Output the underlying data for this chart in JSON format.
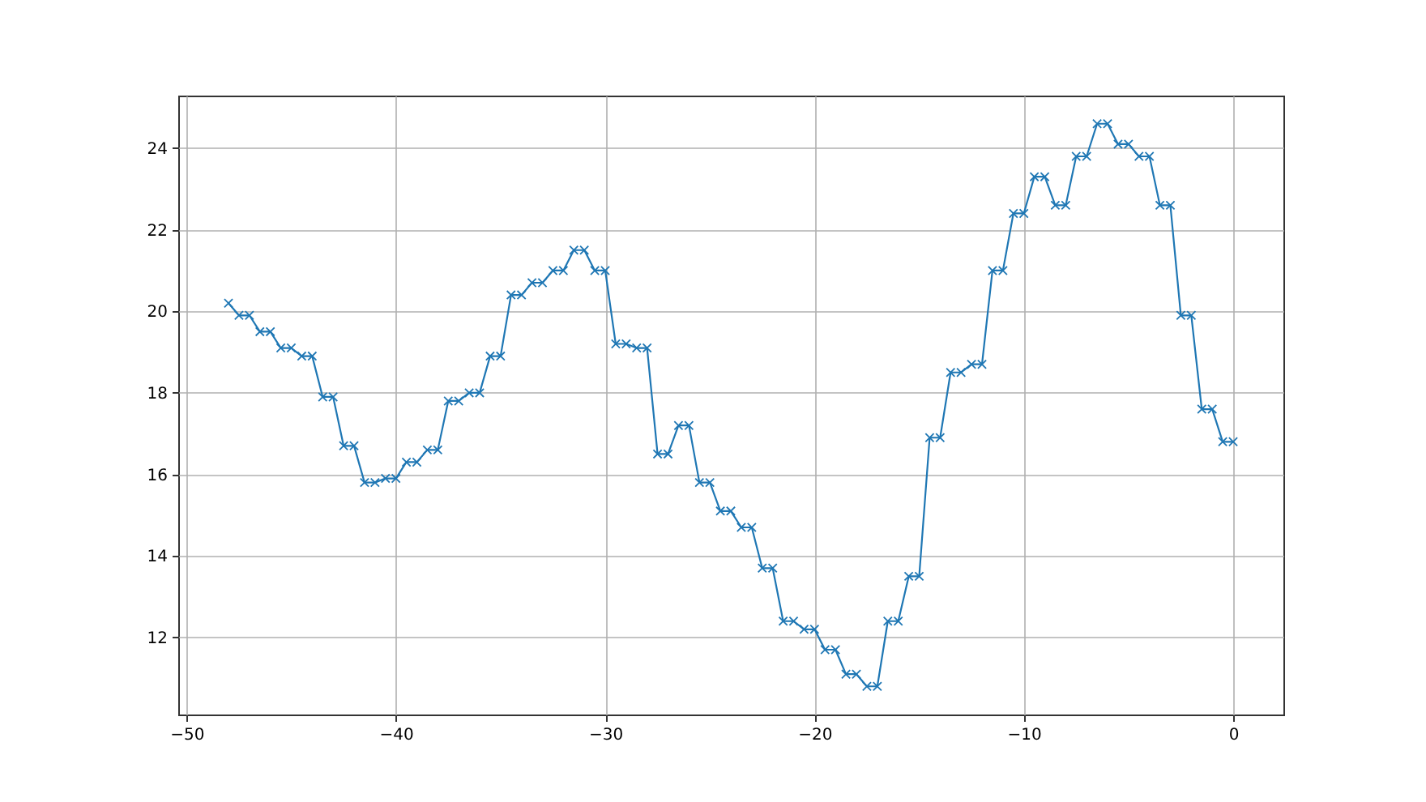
{
  "chart_data": {
    "type": "line",
    "x": [
      -48,
      -47.5,
      -47,
      -46.5,
      -46,
      -45.5,
      -45,
      -44.5,
      -44,
      -43.5,
      -43,
      -42.5,
      -42,
      -41.5,
      -41,
      -40.5,
      -40,
      -39.5,
      -39,
      -38.5,
      -38,
      -37.5,
      -37,
      -36.5,
      -36,
      -35.5,
      -35,
      -34.5,
      -34,
      -33.5,
      -33,
      -32.5,
      -32,
      -31.5,
      -31,
      -30.5,
      -30,
      -29.5,
      -29,
      -28.5,
      -28,
      -27.5,
      -27,
      -26.5,
      -26,
      -25.5,
      -25,
      -24.5,
      -24,
      -23.5,
      -23,
      -22.5,
      -22,
      -21.5,
      -21,
      -20.5,
      -20,
      -19.5,
      -19,
      -18.5,
      -18,
      -17.5,
      -17,
      -16.5,
      -16,
      -15.5,
      -15,
      -14.5,
      -14,
      -13.5,
      -13,
      -12.5,
      -12,
      -11.5,
      -11,
      -10.5,
      -10,
      -9.5,
      -9,
      -8.5,
      -8,
      -7.5,
      -7,
      -6.5,
      -6,
      -5.5,
      -5,
      -4.5,
      -4,
      -3.5,
      -3,
      -2.5,
      -2,
      -1.5,
      -1,
      -0.5,
      0
    ],
    "values": [
      20.2,
      19.9,
      19.9,
      19.5,
      19.5,
      19.1,
      19.1,
      18.9,
      18.9,
      17.9,
      17.9,
      16.7,
      16.7,
      15.8,
      15.8,
      15.9,
      15.9,
      16.3,
      16.3,
      16.6,
      16.6,
      17.8,
      17.8,
      18.0,
      18.0,
      18.9,
      18.9,
      20.4,
      20.4,
      20.7,
      20.7,
      21.0,
      21.0,
      21.5,
      21.5,
      21.0,
      21.0,
      19.2,
      19.2,
      19.1,
      19.1,
      16.5,
      16.5,
      17.2,
      17.2,
      15.8,
      15.8,
      15.1,
      15.1,
      14.7,
      14.7,
      13.7,
      13.7,
      12.4,
      12.4,
      12.2,
      12.2,
      11.7,
      11.7,
      11.1,
      11.1,
      10.8,
      10.8,
      12.4,
      12.4,
      13.5,
      13.5,
      16.9,
      16.9,
      18.5,
      18.5,
      18.7,
      18.7,
      21.0,
      21.0,
      22.4,
      22.4,
      23.3,
      23.3,
      22.6,
      22.6,
      23.8,
      23.8,
      24.6,
      24.6,
      24.1,
      24.1,
      23.8,
      23.8,
      22.6,
      22.6,
      19.9,
      19.9,
      17.6,
      17.6,
      16.8,
      16.8
    ],
    "color": "#1f77b4",
    "marker": "cross",
    "xlim": [
      -50.4,
      2.4
    ],
    "ylim": [
      10.11,
      25.29
    ],
    "xticks": [
      -50,
      -40,
      -30,
      -20,
      -10,
      0
    ],
    "yticks": [
      12,
      14,
      16,
      18,
      20,
      22,
      24
    ],
    "grid": true
  }
}
